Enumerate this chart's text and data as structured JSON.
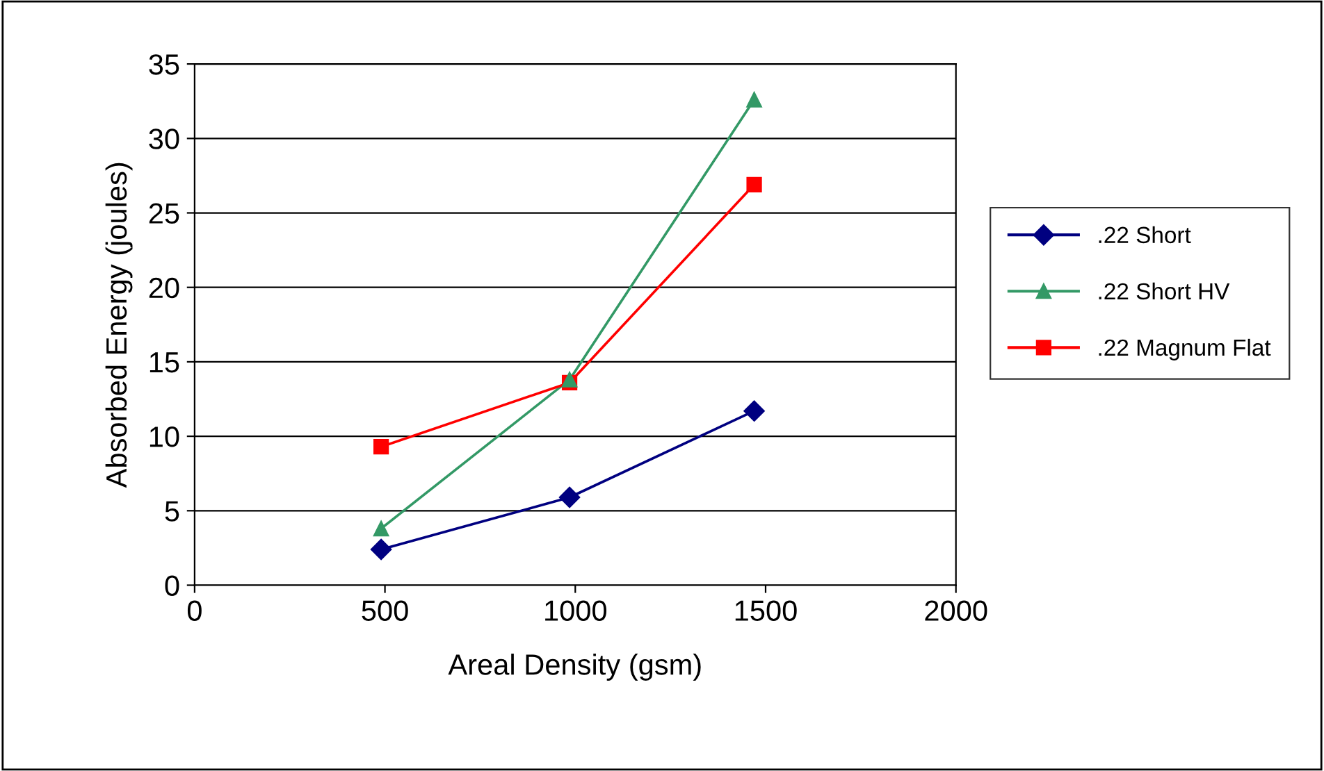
{
  "chart_data": {
    "type": "line",
    "xlabel": "Areal Density (gsm)",
    "ylabel": "Absorbed Energy (joules)",
    "xlim": [
      0,
      2000
    ],
    "xticks": [
      0,
      500,
      1000,
      1500,
      2000
    ],
    "ylim": [
      0,
      35
    ],
    "yticks": [
      0,
      5,
      10,
      15,
      20,
      25,
      30,
      35
    ],
    "grid": "y",
    "legend": "right",
    "line_style": "solid",
    "x": [
      490,
      985,
      1470
    ],
    "series": [
      {
        "name": ".22 Short",
        "color": "#000080",
        "marker": "diamond",
        "values": [
          2.4,
          5.9,
          11.7
        ]
      },
      {
        "name": ".22 Short HV",
        "color": "#339966",
        "marker": "triangle",
        "values": [
          3.8,
          13.8,
          32.6
        ]
      },
      {
        "name": ".22 Magnum Flat",
        "color": "#ff0000",
        "marker": "square",
        "values": [
          9.3,
          13.6,
          26.9
        ]
      }
    ]
  }
}
